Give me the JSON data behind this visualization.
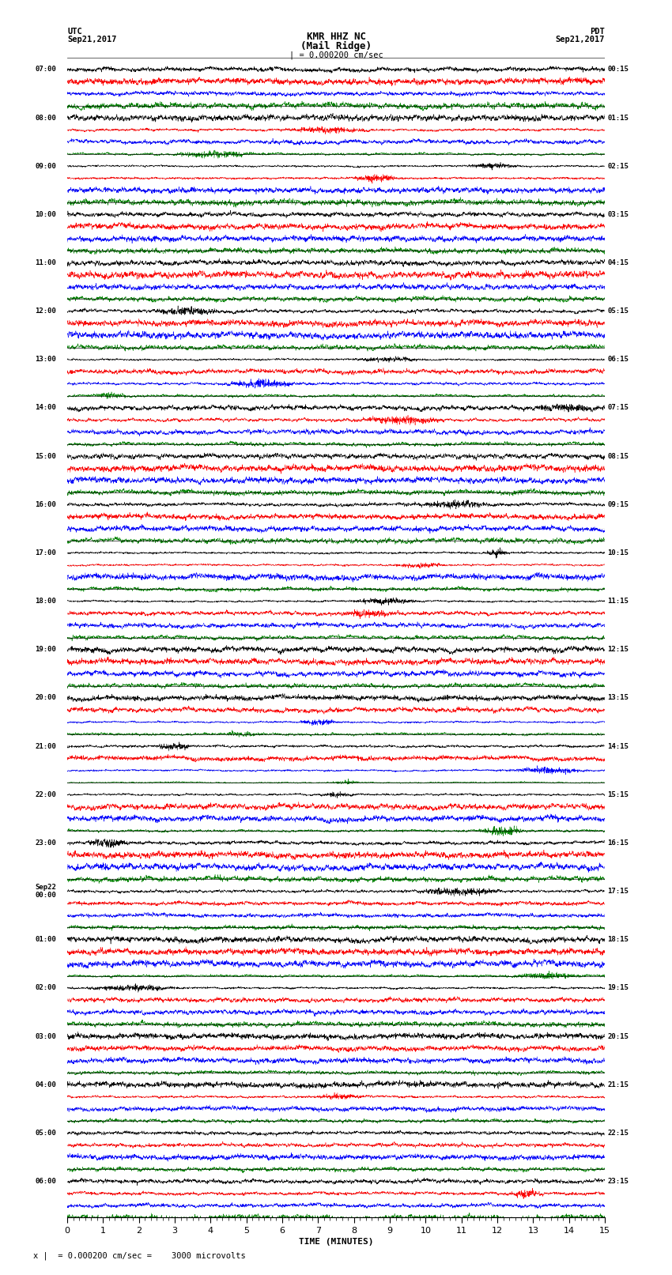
{
  "title_line1": "KMR HHZ NC",
  "title_line2": "(Mail Ridge)",
  "scale_label": "| = 0.000200 cm/sec",
  "utc_label": "UTC",
  "utc_date": "Sep21,2017",
  "pdt_label": "PDT",
  "pdt_date": "Sep21,2017",
  "xlabel": "TIME (MINUTES)",
  "footer": "x |  = 0.000200 cm/sec =    3000 microvolts",
  "xlim": [
    0,
    15
  ],
  "trace_colors": [
    "black",
    "red",
    "blue",
    "green"
  ],
  "background_color": "white",
  "utc_times": [
    "07:00",
    "08:00",
    "09:00",
    "10:00",
    "11:00",
    "12:00",
    "13:00",
    "14:00",
    "15:00",
    "16:00",
    "17:00",
    "18:00",
    "19:00",
    "20:00",
    "21:00",
    "22:00",
    "23:00",
    "Sep22\n00:00",
    "01:00",
    "02:00",
    "03:00",
    "04:00",
    "05:00",
    "06:00"
  ],
  "pdt_times": [
    "00:15",
    "01:15",
    "02:15",
    "03:15",
    "04:15",
    "05:15",
    "06:15",
    "07:15",
    "08:15",
    "09:15",
    "10:15",
    "11:15",
    "12:15",
    "13:15",
    "14:15",
    "15:15",
    "16:15",
    "17:15",
    "18:15",
    "19:15",
    "20:15",
    "21:15",
    "22:15",
    "23:15"
  ],
  "num_rows": 24,
  "traces_per_row": 4,
  "amplitude": 0.45,
  "noise_seed": 42
}
